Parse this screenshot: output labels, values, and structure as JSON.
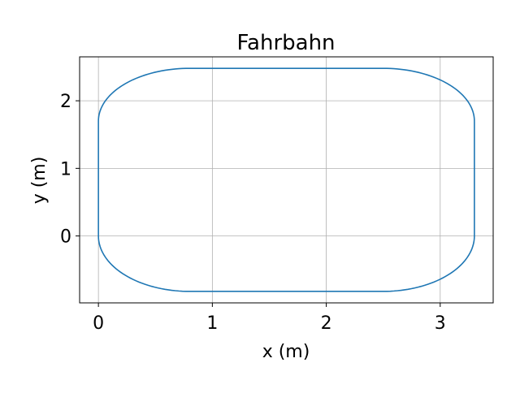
{
  "chart_data": {
    "type": "line",
    "title": "Fahrbahn",
    "xlabel": "x (m)",
    "ylabel": "y (m)",
    "xlim": [
      -0.165,
      3.465
    ],
    "ylim": [
      -0.99,
      2.65
    ],
    "xticks": [
      0,
      1,
      2,
      3
    ],
    "yticks": [
      0,
      1,
      2
    ],
    "grid": true,
    "series": [
      {
        "color": "#1f77b4",
        "shape": "rounded-rectangle track",
        "straight_x_range": [
          0.8,
          2.5
        ],
        "straight_y_range": [
          0.0,
          1.7
        ],
        "x_extent": [
          0.0,
          3.3
        ],
        "y_extent": [
          -0.82,
          2.48
        ]
      }
    ]
  }
}
